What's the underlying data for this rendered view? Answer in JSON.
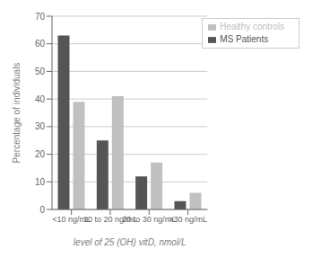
{
  "chart_data": {
    "type": "bar",
    "categories": [
      "<10 ng/mL",
      "10 to 20 ng/mL",
      "20 to 30 ng/mL",
      ">30 ng/mL"
    ],
    "series": [
      {
        "name": "MS Patients",
        "color": "#555555",
        "values": [
          63,
          25,
          12,
          3
        ]
      },
      {
        "name": "Healthy controls",
        "color": "#c0c0c0",
        "values": [
          39,
          41,
          17,
          6
        ]
      }
    ],
    "xlabel": "level of 25 (OH) vitD, nmol/L",
    "ylabel": "Percentage of individuals",
    "ylim": [
      0,
      70
    ],
    "yticks": [
      0,
      10,
      20,
      30,
      40,
      50,
      60,
      70
    ],
    "grid": true,
    "legend": "upper right"
  }
}
